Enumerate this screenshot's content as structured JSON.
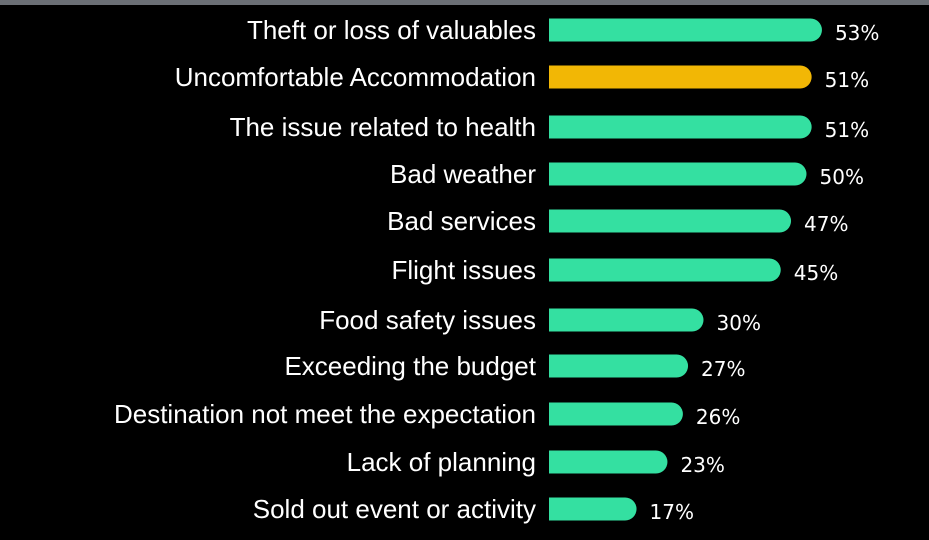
{
  "chart_data": {
    "type": "bar",
    "orientation": "horizontal",
    "categories": [
      "Theft or loss of valuables",
      "Uncomfortable Accommodation",
      "The issue related to health",
      "Bad weather",
      "Bad services",
      "Flight issues",
      "Food safety issues",
      "Exceeding the budget",
      "Destination not meet the expectation",
      "Lack of planning",
      "Sold out event or activity"
    ],
    "values": [
      53,
      51,
      51,
      50,
      47,
      45,
      30,
      27,
      26,
      23,
      17
    ],
    "value_labels": [
      "53%",
      "51%",
      "51%",
      "50%",
      "47%",
      "45%",
      "30%",
      "27%",
      "26%",
      "23%",
      "17%"
    ],
    "unit": "%",
    "highlight_index": 1,
    "colors": {
      "bar": "#34e0a1",
      "highlight": "#f2b705",
      "text": "#ffffff",
      "background": "#000000"
    },
    "grid": false,
    "legend": "none"
  }
}
